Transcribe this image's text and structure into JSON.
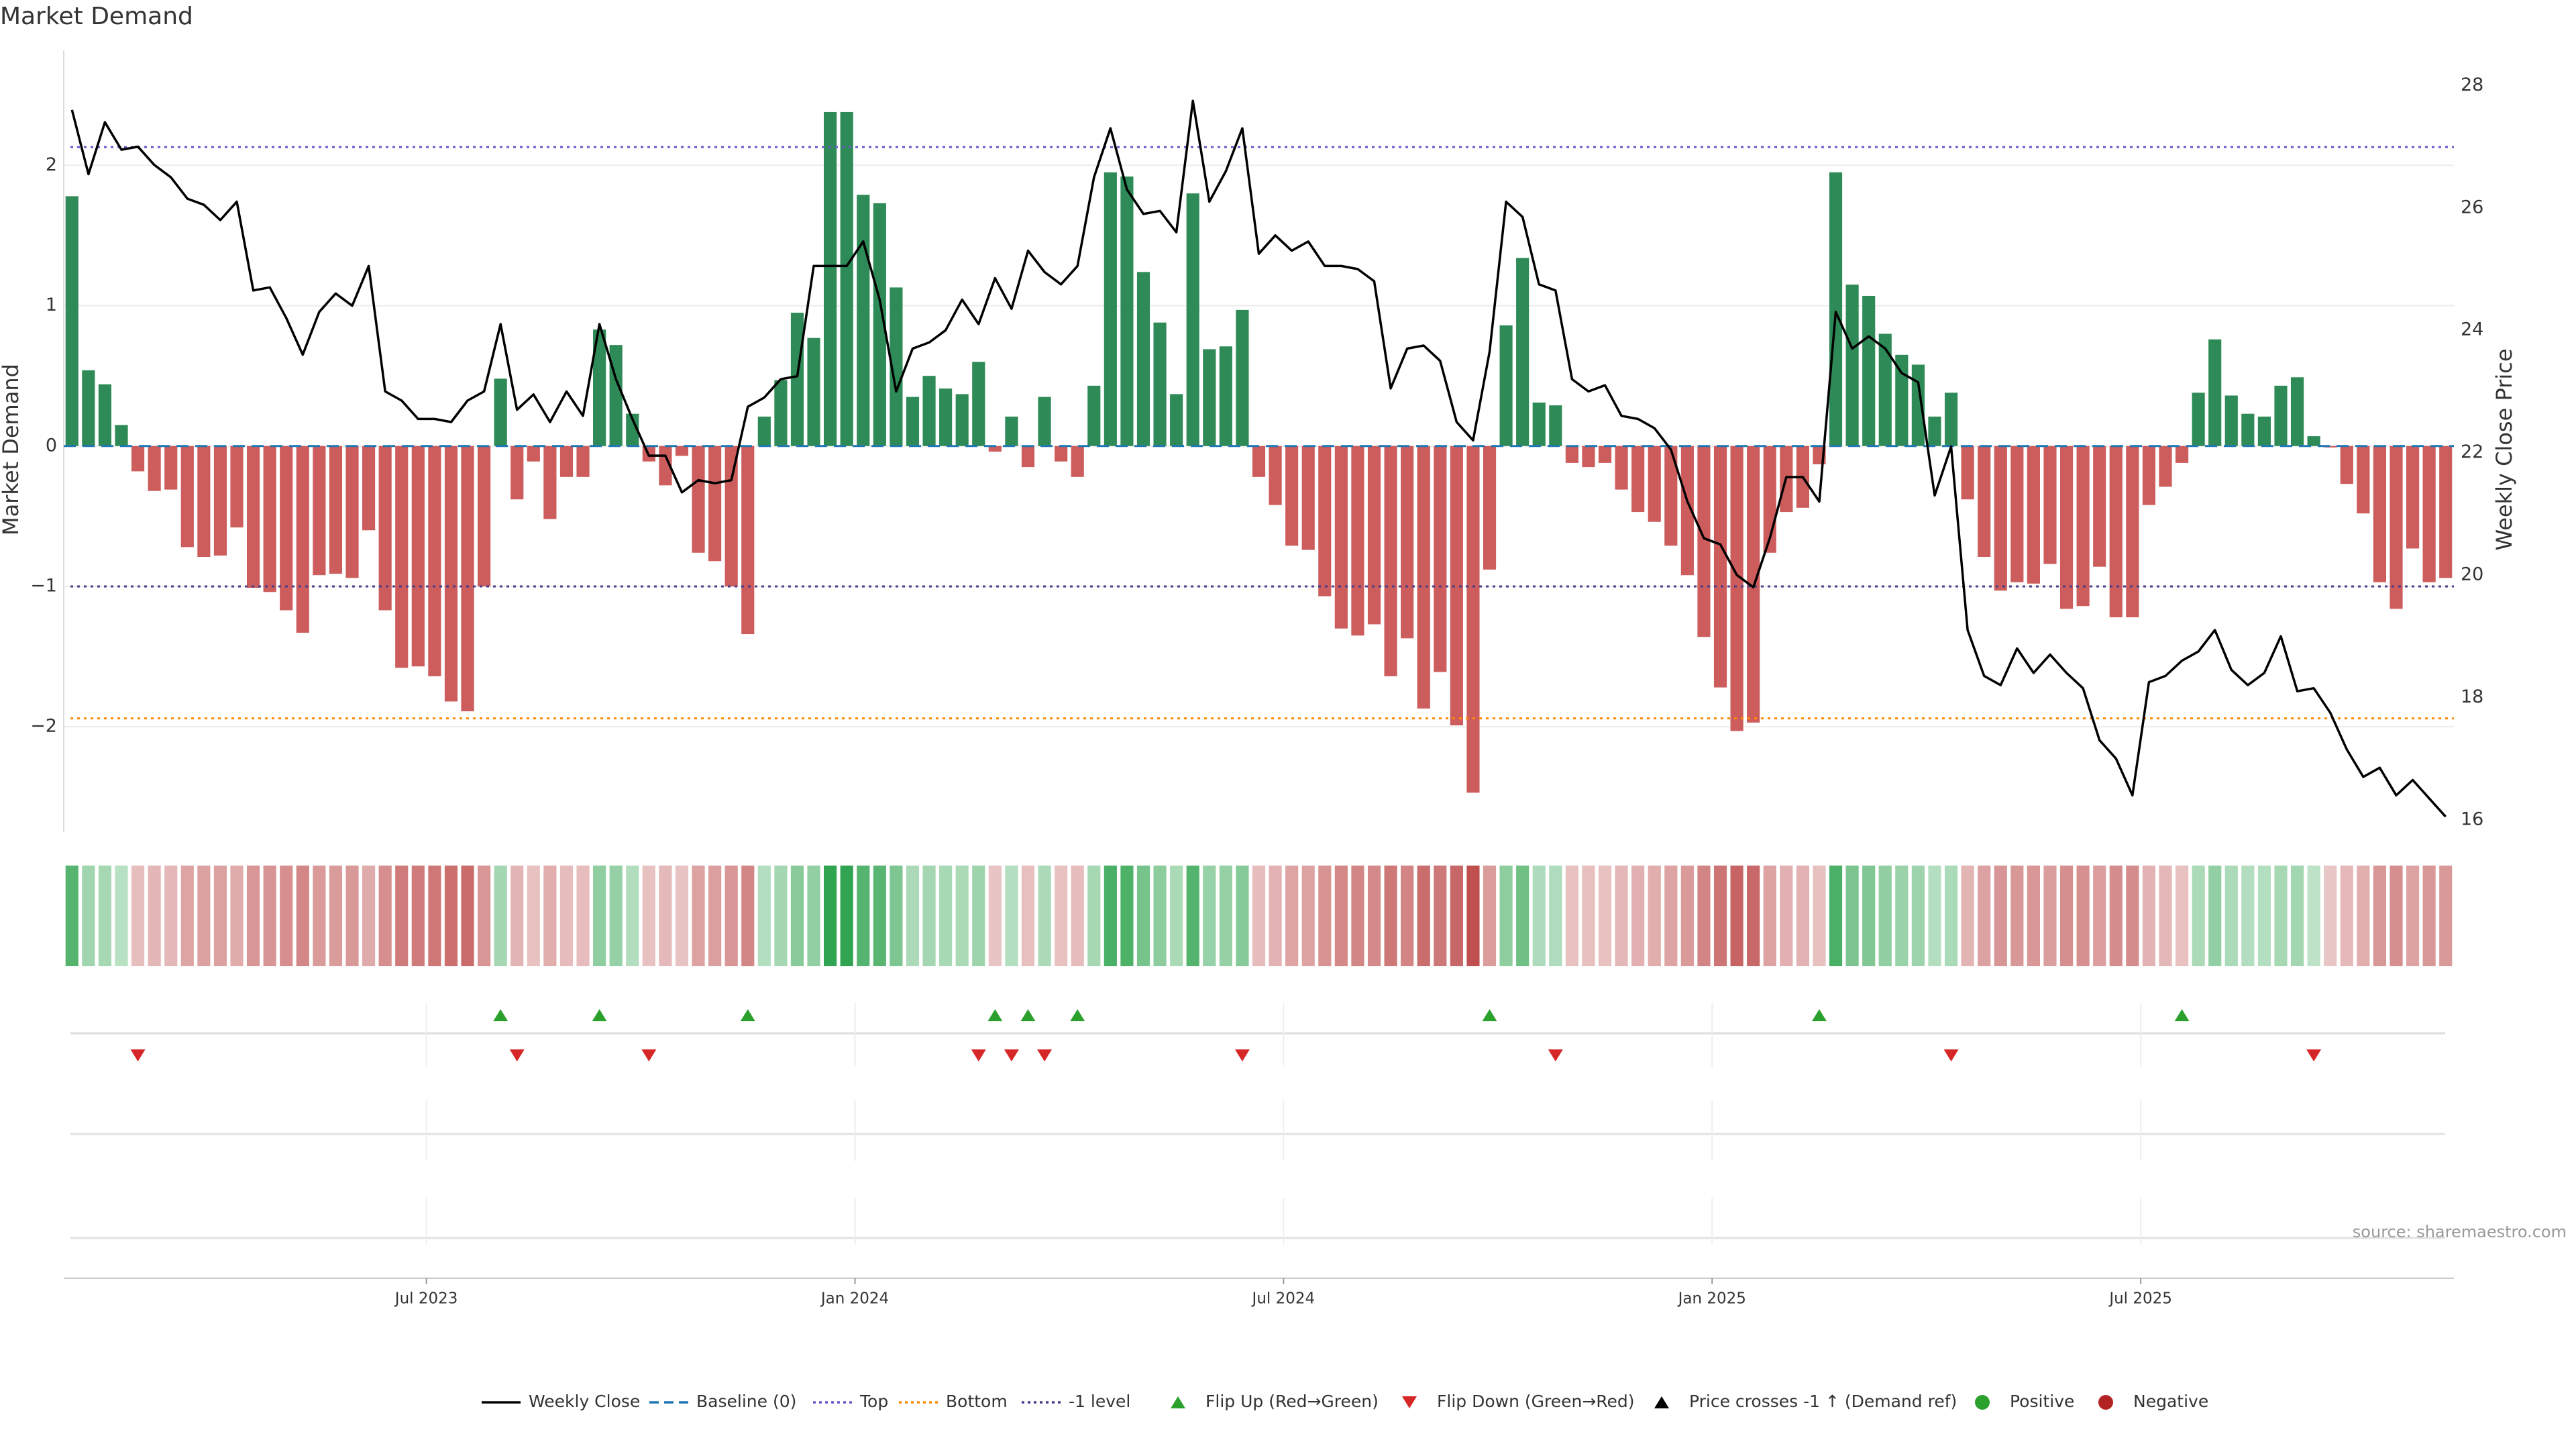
{
  "chart_data": {
    "type": "bar",
    "title": "Market Demand",
    "ylabel": "Market Demand",
    "y2label": "Weekly Close Price",
    "source": "source: sharemaestro.com",
    "ylim": [
      -2.75,
      2.7
    ],
    "y2lim": [
      15.8,
      28.3
    ],
    "yticks": [
      2,
      1,
      0,
      -1,
      -2
    ],
    "ytick_labels": [
      "2",
      "1",
      "0",
      "−1",
      "−2"
    ],
    "y2ticks": [
      28,
      26,
      24,
      22,
      20,
      18,
      16
    ],
    "y2tick_labels": [
      "28",
      "26",
      "24",
      "22",
      "20",
      "18",
      "16"
    ],
    "xticks": [
      22,
      48,
      74,
      100,
      126
    ],
    "xtick_labels": [
      "Jul 2023",
      "Jan 2024",
      "Jul 2024",
      "Jan 2025",
      "Jul 2025"
    ],
    "reference_lines": {
      "top": 2.13,
      "bottom": -1.94,
      "minus_one": -1.0,
      "baseline": 0
    },
    "colors": {
      "positive": "#2e8b57",
      "negative": "#cd5c5c",
      "price": "#000000",
      "top_line": "#6a5acd",
      "bottom_line": "#ff8c00",
      "minus_one_line": "#483d8b",
      "baseline": "#1f77b4",
      "flip_up": "#2ca02c",
      "flip_down": "#d62728"
    },
    "demand": [
      1.78,
      0.54,
      0.44,
      0.15,
      -0.18,
      -0.32,
      -0.31,
      -0.72,
      -0.79,
      -0.78,
      -0.58,
      -1.01,
      -1.04,
      -1.17,
      -1.33,
      -0.92,
      -0.91,
      -0.94,
      -0.6,
      -1.17,
      -1.58,
      -1.57,
      -1.64,
      -1.82,
      -1.89,
      -1.0,
      0.48,
      -0.38,
      -0.11,
      -0.52,
      -0.22,
      -0.22,
      0.83,
      0.72,
      0.23,
      -0.11,
      -0.28,
      -0.07,
      -0.76,
      -0.82,
      -1.0,
      -1.34,
      0.21,
      0.47,
      0.95,
      0.77,
      2.38,
      2.38,
      1.79,
      1.73,
      1.13,
      0.35,
      0.5,
      0.41,
      0.37,
      0.6,
      -0.04,
      0.21,
      -0.15,
      0.35,
      -0.11,
      -0.22,
      0.43,
      1.95,
      1.92,
      1.24,
      0.88,
      0.37,
      1.8,
      0.69,
      0.71,
      0.97,
      -0.22,
      -0.42,
      -0.71,
      -0.74,
      -1.07,
      -1.3,
      -1.35,
      -1.27,
      -1.64,
      -1.37,
      -1.87,
      -1.61,
      -1.99,
      -2.47,
      -0.88,
      0.86,
      1.34,
      0.31,
      0.29,
      -0.12,
      -0.15,
      -0.12,
      -0.31,
      -0.47,
      -0.54,
      -0.71,
      -0.92,
      -1.36,
      -1.72,
      -2.03,
      -1.97,
      -0.76,
      -0.47,
      -0.44,
      -0.13,
      1.95,
      1.15,
      1.07,
      0.8,
      0.65,
      0.58,
      0.21,
      0.38,
      -0.38,
      -0.79,
      -1.03,
      -0.97,
      -0.98,
      -0.84,
      -1.16,
      -1.14,
      -0.86,
      -1.22,
      -1.22,
      -0.42,
      -0.29,
      -0.12,
      0.38,
      0.76,
      0.36,
      0.23,
      0.21,
      0.43,
      0.49,
      0.07,
      -0.01,
      -0.27,
      -0.48,
      -0.97,
      -1.16,
      -0.73,
      -0.97,
      -0.94
    ],
    "price": [
      27.6,
      26.55,
      27.4,
      26.95,
      27.0,
      26.7,
      26.5,
      26.15,
      26.05,
      25.8,
      26.1,
      24.65,
      24.7,
      24.2,
      23.6,
      24.3,
      24.6,
      24.4,
      25.05,
      23.0,
      22.85,
      22.55,
      22.55,
      22.5,
      22.85,
      23.0,
      24.1,
      22.7,
      22.95,
      22.5,
      23.0,
      22.6,
      24.1,
      23.2,
      22.55,
      21.95,
      21.95,
      21.35,
      21.55,
      21.5,
      21.55,
      22.75,
      22.9,
      23.2,
      23.25,
      25.05,
      25.05,
      25.05,
      25.45,
      24.5,
      23.0,
      23.7,
      23.8,
      24.0,
      24.5,
      24.1,
      24.85,
      24.35,
      25.3,
      24.95,
      24.75,
      25.05,
      26.5,
      27.3,
      26.3,
      25.9,
      25.95,
      25.6,
      27.75,
      26.1,
      26.6,
      27.3,
      25.25,
      25.55,
      25.3,
      25.45,
      25.05,
      25.05,
      25.0,
      24.8,
      23.05,
      23.7,
      23.75,
      23.5,
      22.5,
      22.2,
      23.65,
      26.1,
      25.85,
      24.75,
      24.65,
      23.2,
      23.0,
      23.1,
      22.6,
      22.55,
      22.4,
      22.05,
      21.2,
      20.6,
      20.5,
      20.0,
      19.8,
      20.6,
      21.6,
      21.6,
      21.2,
      24.3,
      23.7,
      23.9,
      23.7,
      23.3,
      23.15,
      21.3,
      22.1,
      19.1,
      18.35,
      18.2,
      18.8,
      18.4,
      18.7,
      18.4,
      18.15,
      17.3,
      17.0,
      16.4,
      18.25,
      18.35,
      18.6,
      18.75,
      19.1,
      18.45,
      18.2,
      18.4,
      19.0,
      18.1,
      18.15,
      17.75,
      17.15,
      16.7,
      16.85,
      16.4,
      16.65,
      16.35,
      16.05
    ],
    "flip_up_weeks": [
      26,
      32,
      41,
      56,
      58,
      61,
      86,
      106,
      128
    ],
    "flip_down_weeks": [
      4,
      27,
      35,
      55,
      57,
      59,
      71,
      90,
      114,
      136
    ],
    "legend": [
      "Weekly Close",
      "Baseline (0)",
      "Top",
      "Bottom",
      "-1 level",
      "Flip Up (Red→Green)",
      "Flip Down (Green→Red)",
      "Price crosses -1 ↑ (Demand ref)",
      "Positive",
      "Negative"
    ]
  }
}
